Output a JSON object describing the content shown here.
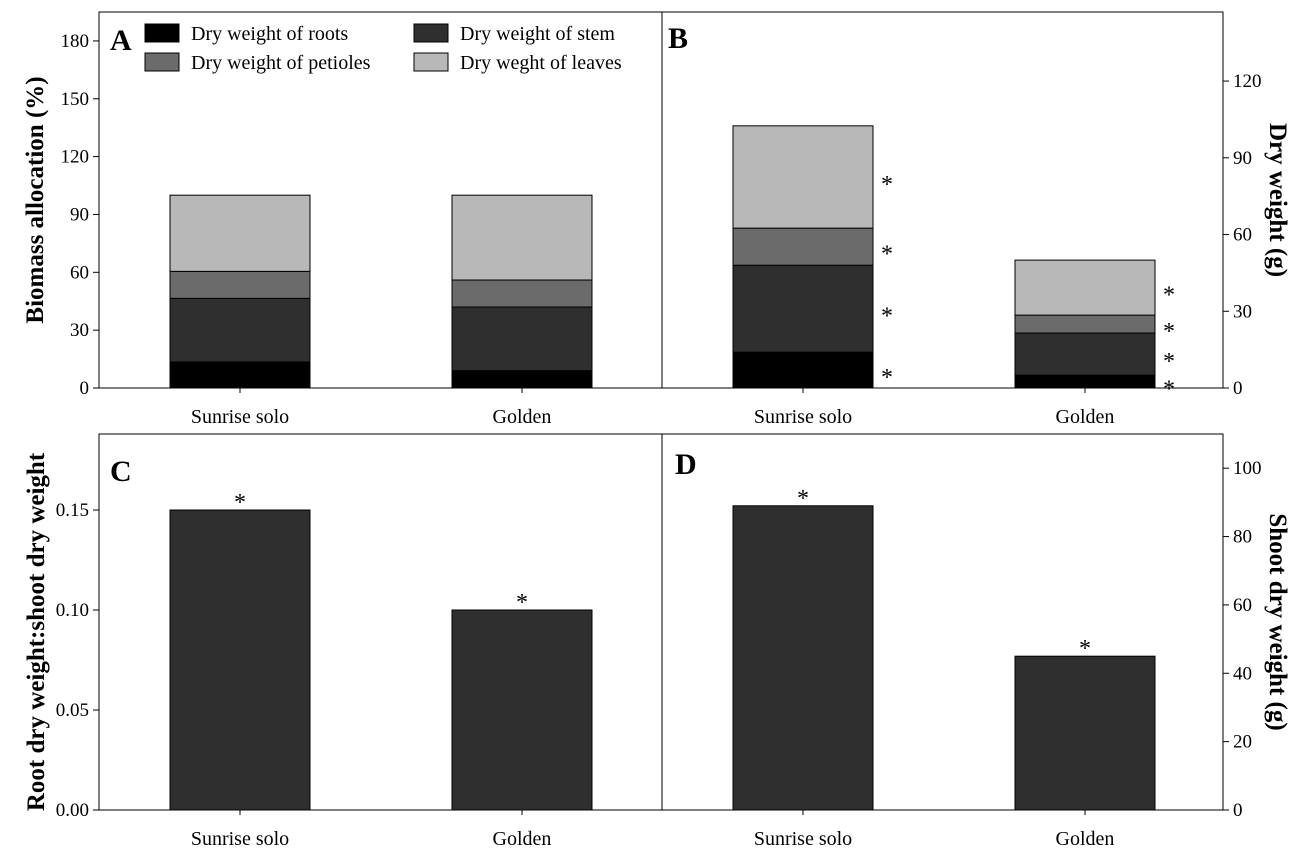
{
  "colors": {
    "roots": "#000000",
    "stem": "#2f2f2f",
    "petioles": "#6b6b6b",
    "leaves": "#b8b8b8",
    "bar": "#2f2f2f"
  },
  "legend": {
    "roots": "Dry weight  of roots",
    "stem": "Dry weight of stem",
    "petioles": "Dry weight of petioles",
    "leaves": "Dry weght of  leaves"
  },
  "chart_data": [
    {
      "panel": "A",
      "type": "bar",
      "stacked": true,
      "categories": [
        "Sunrise solo",
        "Golden"
      ],
      "series": [
        {
          "name": "Dry weight  of roots",
          "values": [
            13.5,
            9
          ]
        },
        {
          "name": "Dry weight of stem",
          "values": [
            33,
            33
          ]
        },
        {
          "name": "Dry weight of petioles",
          "values": [
            14,
            14
          ]
        },
        {
          "name": "Dry weght of  leaves",
          "values": [
            39.5,
            44
          ]
        }
      ],
      "ylabel": "Biomass allocation   (%)",
      "ylim": [
        0,
        195
      ],
      "yticks": [
        0,
        30,
        60,
        90,
        120,
        150,
        180
      ],
      "ytick_labels": [
        "0",
        "30",
        "60",
        "90",
        "120",
        "150",
        "180"
      ],
      "yaxis_side": "left",
      "legend_position": "top"
    },
    {
      "panel": "B",
      "type": "bar",
      "stacked": true,
      "categories": [
        "Sunrise solo",
        "Golden"
      ],
      "series": [
        {
          "name": "Dry weight  of roots",
          "values": [
            14,
            5
          ]
        },
        {
          "name": "Dry weight of stem",
          "values": [
            34,
            16.5
          ]
        },
        {
          "name": "Dry weight of petioles",
          "values": [
            14.5,
            7
          ]
        },
        {
          "name": "Dry weght of  leaves",
          "values": [
            40,
            21.5
          ]
        }
      ],
      "annotations": "*",
      "ylabel": "Dry weight  (g)",
      "ylim": [
        0,
        147
      ],
      "yticks": [
        0,
        30,
        60,
        90,
        120
      ],
      "ytick_labels": [
        "0",
        "30",
        "60",
        "90",
        "120"
      ],
      "yaxis_side": "right"
    },
    {
      "panel": "C",
      "type": "bar",
      "categories": [
        "Sunrise solo",
        "Golden"
      ],
      "values": [
        0.15,
        0.1
      ],
      "annotations": "*",
      "ylabel": "Root dry weight:shoot dry weight",
      "ylim": [
        0,
        0.188
      ],
      "yticks": [
        0,
        0.05,
        0.1,
        0.15
      ],
      "ytick_labels": [
        "0.00",
        "0.05",
        "0.10",
        "0.15"
      ],
      "yaxis_side": "left"
    },
    {
      "panel": "D",
      "type": "bar",
      "categories": [
        "Sunrise solo",
        "Golden"
      ],
      "values": [
        89,
        45
      ],
      "annotations": "*",
      "ylabel": "Shoot dry weight  (g)",
      "ylim": [
        0,
        110
      ],
      "yticks": [
        0,
        20,
        40,
        60,
        80,
        100
      ],
      "ytick_labels": [
        "0",
        "20",
        "40",
        "60",
        "80",
        "100"
      ],
      "yaxis_side": "right"
    }
  ]
}
